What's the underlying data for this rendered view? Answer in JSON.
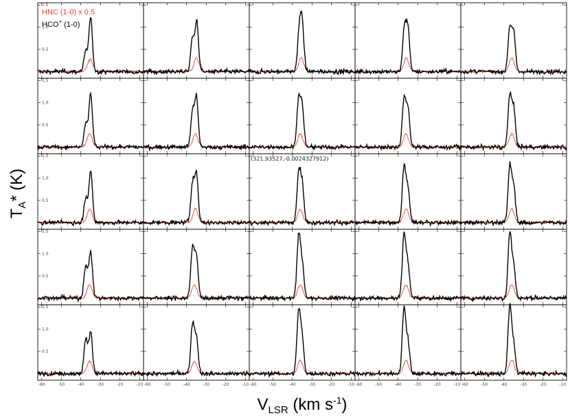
{
  "chart_data": {
    "type": "line",
    "layout": "grid of spectra",
    "grid_rows": 5,
    "grid_cols": 5,
    "xlabel_main": "V",
    "xlabel_sub": "LSR",
    "xlabel_unit": " (km s",
    "xlabel_unit_sup": "-1",
    "xlabel_close": ")",
    "ylabel_main": "T",
    "ylabel_sub": "A",
    "ylabel_rest": "* (K)",
    "xlim": [
      -62,
      -8
    ],
    "ylim": [
      -0.15,
      1.55
    ],
    "x_ticks": [
      -60,
      -50,
      -40,
      -30,
      -20,
      -10
    ],
    "x_tick_labels": [
      "-60",
      "-50",
      "-40",
      "-30",
      "-20",
      "-10"
    ],
    "y_ticks": [
      0.0,
      0.5,
      1.0,
      1.5
    ],
    "y_tick_labels": [
      "0.0",
      "0.5",
      "1.0",
      "1.5"
    ],
    "annotation": "(321.93527,-0.0024327912)",
    "annotation_panel": [
      2,
      2
    ],
    "legend_location": "top-left of first panel",
    "series": [
      {
        "name": "HNC  (1-0) x 0.5",
        "color": "#e8432b"
      },
      {
        "name": "HCO",
        "name_sup": "+",
        "name_tail": " (1-0)",
        "color": "#000000"
      }
    ],
    "panels": [
      [
        {
          "hco": [
            [
              -37.5,
              0.45
            ],
            [
              -35.0,
              1.2
            ]
          ],
          "hnc": [
            [
              -35.2,
              0.28
            ]
          ]
        },
        {
          "hco": [
            [
              -37.0,
              0.75
            ],
            [
              -34.8,
              1.1
            ]
          ],
          "hnc": [
            [
              -35.0,
              0.3
            ]
          ]
        },
        {
          "hco": [
            [
              -36.5,
              0.85
            ],
            [
              -35.0,
              1.05
            ]
          ],
          "hnc": [
            [
              -35.5,
              0.3
            ]
          ]
        },
        {
          "hco": [
            [
              -36.8,
              0.95
            ],
            [
              -35.0,
              0.95
            ]
          ],
          "hnc": [
            [
              -35.8,
              0.3
            ]
          ]
        },
        {
          "hco": [
            [
              -37.0,
              0.98
            ],
            [
              -35.0,
              0.85
            ]
          ],
          "hnc": [
            [
              -36.0,
              0.3
            ]
          ]
        }
      ],
      [
        {
          "hco": [
            [
              -37.5,
              0.5
            ],
            [
              -35.0,
              1.2
            ]
          ],
          "hnc": [
            [
              -35.5,
              0.3
            ]
          ]
        },
        {
          "hco": [
            [
              -37.0,
              0.75
            ],
            [
              -35.0,
              1.1
            ]
          ],
          "hnc": [
            [
              -35.5,
              0.3
            ]
          ]
        },
        {
          "hco": [
            [
              -36.8,
              1.05
            ],
            [
              -35.0,
              0.85
            ]
          ],
          "hnc": [
            [
              -36.0,
              0.3
            ]
          ]
        },
        {
          "hco": [
            [
              -37.0,
              1.05
            ],
            [
              -35.0,
              0.85
            ]
          ],
          "hnc": [
            [
              -36.0,
              0.3
            ]
          ]
        },
        {
          "hco": [
            [
              -37.0,
              1.15
            ],
            [
              -35.0,
              0.85
            ]
          ],
          "hnc": [
            [
              -36.0,
              0.3
            ]
          ]
        }
      ],
      [
        {
          "hco": [
            [
              -37.5,
              0.55
            ],
            [
              -35.0,
              1.15
            ]
          ],
          "hnc": [
            [
              -35.5,
              0.3
            ]
          ]
        },
        {
          "hco": [
            [
              -37.0,
              0.85
            ],
            [
              -35.0,
              1.1
            ]
          ],
          "hnc": [
            [
              -35.5,
              0.3
            ]
          ]
        },
        {
          "hco": [
            [
              -36.8,
              1.1
            ],
            [
              -35.0,
              0.85
            ]
          ],
          "hnc": [
            [
              -36.0,
              0.3
            ]
          ]
        },
        {
          "hco": [
            [
              -37.0,
              1.25
            ],
            [
              -35.0,
              0.75
            ]
          ],
          "hnc": [
            [
              -36.0,
              0.3
            ]
          ]
        },
        {
          "hco": [
            [
              -37.0,
              1.25
            ],
            [
              -35.0,
              0.8
            ]
          ],
          "hnc": [
            [
              -36.0,
              0.3
            ]
          ]
        }
      ],
      [
        {
          "hco": [
            [
              -37.5,
              0.75
            ],
            [
              -35.0,
              1.05
            ]
          ],
          "hnc": [
            [
              -35.5,
              0.3
            ]
          ]
        },
        {
          "hco": [
            [
              -37.0,
              1.1
            ],
            [
              -35.0,
              0.95
            ]
          ],
          "hnc": [
            [
              -36.0,
              0.3
            ]
          ]
        },
        {
          "hco": [
            [
              -36.8,
              1.35
            ],
            [
              -35.0,
              0.75
            ]
          ],
          "hnc": [
            [
              -36.0,
              0.3
            ]
          ]
        },
        {
          "hco": [
            [
              -37.0,
              1.4
            ],
            [
              -35.0,
              0.75
            ]
          ],
          "hnc": [
            [
              -36.0,
              0.3
            ]
          ]
        },
        {
          "hco": [
            [
              -37.0,
              1.45
            ],
            [
              -35.0,
              0.7
            ]
          ],
          "hnc": [
            [
              -36.0,
              0.3
            ]
          ]
        }
      ],
      [
        {
          "hco": [
            [
              -37.5,
              0.8
            ],
            [
              -35.0,
              0.95
            ]
          ],
          "hnc": [
            [
              -35.5,
              0.28
            ]
          ]
        },
        {
          "hco": [
            [
              -37.0,
              1.1
            ],
            [
              -35.0,
              0.8
            ]
          ],
          "hnc": [
            [
              -36.0,
              0.28
            ]
          ]
        },
        {
          "hco": [
            [
              -36.8,
              1.35
            ],
            [
              -35.0,
              0.75
            ]
          ],
          "hnc": [
            [
              -36.0,
              0.3
            ]
          ]
        },
        {
          "hco": [
            [
              -37.0,
              1.45
            ],
            [
              -35.0,
              0.7
            ]
          ],
          "hnc": [
            [
              -36.0,
              0.3
            ]
          ]
        },
        {
          "hco": [
            [
              -37.0,
              1.5
            ],
            [
              -35.0,
              0.65
            ]
          ],
          "hnc": [
            [
              -36.0,
              0.3
            ]
          ]
        }
      ]
    ],
    "noise_rms_hco": 0.05,
    "noise_rms_hnc": 0.025
  }
}
